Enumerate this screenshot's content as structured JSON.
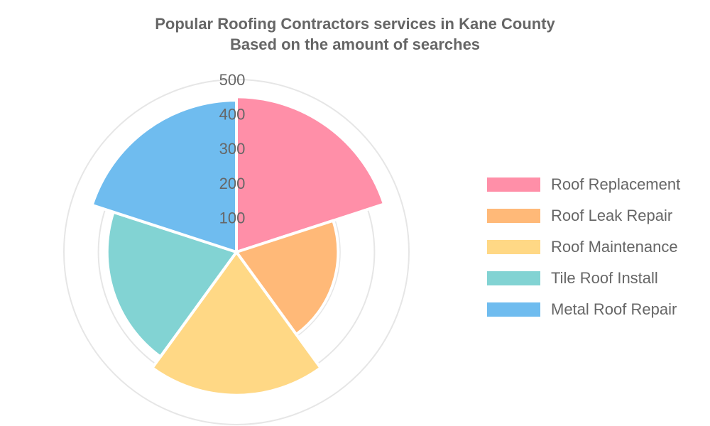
{
  "chart_data": {
    "type": "polarArea",
    "title": "Popular Roofing Contractors services in Kane County",
    "subtitle": "Based on the amount of searches",
    "categories": [
      "Roof Replacement",
      "Roof Leak Repair",
      "Roof Maintenance",
      "Tile Roof Install",
      "Metal Roof Repair"
    ],
    "values": [
      450,
      295,
      415,
      375,
      440
    ],
    "colors": [
      "#ff8fa8",
      "#ffb978",
      "#ffd885",
      "#82d3d3",
      "#6fbcef"
    ],
    "rlim": [
      0,
      500
    ],
    "ticks": [
      100,
      200,
      300,
      400,
      500
    ],
    "grid": true,
    "legend": "right"
  }
}
